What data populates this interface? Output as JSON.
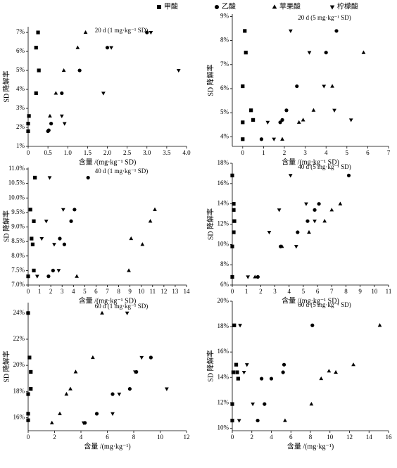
{
  "legend_marker_from": 0,
  "chart_data": [
    {
      "type": "scatter",
      "title": "20 d (1 mg·kg⁻¹ SD)",
      "x_label": "含量 /(mg·kg⁻¹ SD)",
      "y_label": "SD 降解率",
      "xlim": [
        0,
        4
      ],
      "xticks": [
        0,
        0.5,
        {
          "value": 1,
          "label": "1.0"
        },
        1.5,
        {
          "value": 2,
          "label": "2.0"
        },
        2.5,
        {
          "value": 3,
          "label": "3.0"
        },
        3.5,
        {
          "value": 4,
          "label": "4.0"
        }
      ],
      "ylim": [
        1,
        7.3
      ],
      "yticks": [
        {
          "value": 1,
          "label": "1%"
        },
        {
          "value": 2,
          "label": "2%"
        },
        {
          "value": 3,
          "label": "3%"
        },
        {
          "value": 4,
          "label": "4%"
        },
        {
          "value": 5,
          "label": "5%"
        },
        {
          "value": 6,
          "label": "6%"
        },
        {
          "value": 7,
          "label": "7%"
        }
      ],
      "series": [
        {
          "name": "甲酸",
          "marker": "square",
          "color": "#000000",
          "x": [
            0,
            0,
            0.02,
            0.2,
            0.2,
            0.25,
            0.27
          ],
          "values": [
            1.8,
            2.2,
            2.6,
            3.8,
            6.2,
            7.0,
            5.0
          ]
        },
        {
          "name": "乙酸",
          "marker": "circle",
          "color": "#000000",
          "x": [
            0.5,
            0.52,
            0.58,
            0.85,
            1.3,
            2.0,
            3.0
          ],
          "values": [
            1.8,
            1.85,
            2.2,
            3.8,
            5.0,
            6.2,
            7.0
          ]
        },
        {
          "name": "苹果酸",
          "marker": "triangle",
          "color": "#000000",
          "x": [
            0.55,
            0.7,
            0.9,
            1.25,
            1.45
          ],
          "values": [
            2.6,
            3.8,
            5.0,
            6.2,
            7.0
          ]
        },
        {
          "name": "柠檬酸",
          "marker": "triangle-down",
          "color": "#000000",
          "x": [
            0.85,
            0.92,
            1.9,
            2.1,
            3.1,
            3.8
          ],
          "values": [
            2.6,
            2.2,
            3.8,
            6.2,
            7.0,
            5.0
          ]
        }
      ]
    },
    {
      "type": "scatter",
      "title": "20 d (5 mg·kg⁻¹ SD)",
      "x_label": "含量 /(mg·kg⁻¹ SD)",
      "y_label": "SD 降解率",
      "xlim": [
        -0.5,
        7
      ],
      "xticks": [
        0,
        1,
        2,
        3,
        4,
        5,
        6,
        7
      ],
      "ylim": [
        3.6,
        9.1
      ],
      "yticks": [
        {
          "value": 4,
          "label": "4%"
        },
        {
          "value": 5,
          "label": "5%"
        },
        {
          "value": 6,
          "label": "6%"
        },
        {
          "value": 7,
          "label": "7%"
        },
        {
          "value": 8,
          "label": "8%"
        },
        {
          "value": 9,
          "label": "9%"
        }
      ],
      "series": [
        {
          "name": "甲酸",
          "marker": "square",
          "color": "#000000",
          "x": [
            0,
            0,
            0,
            0.1,
            0.15,
            0.4,
            0.5
          ],
          "values": [
            3.9,
            4.6,
            6.1,
            8.4,
            7.5,
            5.1,
            4.7
          ]
        },
        {
          "name": "乙酸",
          "marker": "circle",
          "color": "#000000",
          "x": [
            0.9,
            1.8,
            1.9,
            2.1,
            2.6,
            4.0,
            4.5
          ],
          "values": [
            3.9,
            4.6,
            4.7,
            5.1,
            6.1,
            7.5,
            8.4
          ]
        },
        {
          "name": "苹果酸",
          "marker": "triangle",
          "color": "#000000",
          "x": [
            1.9,
            2.7,
            2.9,
            3.4,
            4.3,
            5.8
          ],
          "values": [
            3.9,
            4.6,
            4.7,
            5.1,
            6.1,
            7.5
          ]
        },
        {
          "name": "柠檬酸",
          "marker": "triangle-down",
          "color": "#000000",
          "x": [
            1.2,
            1.5,
            2.3,
            3.2,
            3.9,
            4.4,
            5.2
          ],
          "values": [
            4.6,
            3.9,
            8.4,
            7.5,
            6.1,
            5.1,
            4.7
          ]
        }
      ]
    },
    {
      "type": "scatter",
      "title": "40 d (1 mg·kg⁻¹ SD)",
      "x_label": "含量 /(mg·kg⁻¹ SD)",
      "y_label": "SD 降解率",
      "xlim": [
        0,
        14
      ],
      "xticks": [
        0,
        1,
        2,
        3,
        4,
        5,
        6,
        7,
        8,
        9,
        10,
        11,
        12,
        13,
        14
      ],
      "ylim": [
        7,
        11.05
      ],
      "yticks": [
        {
          "value": 7,
          "label": "7.0%"
        },
        {
          "value": 7.5,
          "label": "7.5%"
        },
        {
          "value": 8,
          "label": "8.0%"
        },
        {
          "value": 8.5,
          "label": "8.5%"
        },
        {
          "value": 9,
          "label": "9.0%"
        },
        {
          "value": 9.5,
          "label": "9.5%"
        },
        {
          "value": 10,
          "label": "10.0%"
        },
        {
          "value": 10.5,
          "label": "10.5%"
        },
        {
          "value": 11,
          "label": "11.0%"
        }
      ],
      "series": [
        {
          "name": "甲酸",
          "marker": "square",
          "color": "#000000",
          "x": [
            0,
            0.2,
            0.3,
            0.4,
            0.5,
            0.5,
            0.6
          ],
          "values": [
            7.3,
            9.6,
            8.6,
            8.4,
            9.2,
            7.5,
            10.7
          ]
        },
        {
          "name": "乙酸",
          "marker": "circle",
          "color": "#000000",
          "x": [
            1.8,
            2.2,
            2.8,
            3.2,
            3.8,
            4.1,
            5.3
          ],
          "values": [
            7.3,
            7.5,
            8.6,
            8.4,
            9.2,
            9.6,
            10.7
          ]
        },
        {
          "name": "苹果酸",
          "marker": "triangle",
          "color": "#000000",
          "x": [
            4.3,
            8.9,
            9.1,
            10.1,
            10.8,
            11.2
          ],
          "values": [
            7.3,
            7.5,
            8.6,
            8.4,
            9.2,
            9.6
          ]
        },
        {
          "name": "柠檬酸",
          "marker": "triangle-down",
          "color": "#000000",
          "x": [
            0.8,
            1.2,
            1.6,
            1.9,
            2.3,
            2.7,
            3.1
          ],
          "values": [
            7.3,
            8.6,
            9.2,
            10.7,
            8.4,
            7.5,
            9.6
          ]
        }
      ]
    },
    {
      "type": "scatter",
      "title": "40 d (5 mg·kg⁻¹ SD)",
      "x_label": "含量 /(mg·kg⁻¹ SD)",
      "y_label": "SD 降解率",
      "xlim": [
        0,
        11
      ],
      "xticks": [
        0,
        1,
        2,
        3,
        4,
        5,
        6,
        7,
        8,
        9,
        10,
        11
      ],
      "ylim": [
        6,
        18
      ],
      "yticks": [
        {
          "value": 6,
          "label": "6%"
        },
        {
          "value": 8,
          "label": "8%"
        },
        {
          "value": 10,
          "label": "10%"
        },
        {
          "value": 12,
          "label": "12%"
        },
        {
          "value": 14,
          "label": "14%"
        },
        {
          "value": 16,
          "label": "16%"
        },
        {
          "value": 18,
          "label": "18%"
        }
      ],
      "series": [
        {
          "name": "甲酸",
          "marker": "square",
          "color": "#000000",
          "x": [
            0,
            0,
            0.1,
            0.15,
            0.1,
            0.1,
            0
          ],
          "values": [
            6.8,
            9.8,
            11.2,
            12.3,
            13.4,
            14,
            16.8
          ]
        },
        {
          "name": "乙酸",
          "marker": "circle",
          "color": "#000000",
          "x": [
            1.8,
            3.4,
            4.6,
            5.3,
            5.8,
            6.1,
            8.2
          ],
          "values": [
            6.8,
            9.8,
            11.2,
            12.3,
            13.4,
            14,
            16.8
          ]
        },
        {
          "name": "苹果酸",
          "marker": "triangle",
          "color": "#000000",
          "x": [
            1.6,
            3.5,
            5.4,
            6.5,
            7.0,
            7.6
          ],
          "values": [
            6.8,
            9.8,
            11.2,
            12.3,
            13.4,
            14
          ]
        },
        {
          "name": "柠檬酸",
          "marker": "triangle-down",
          "color": "#000000",
          "x": [
            1.1,
            2.6,
            3.3,
            4.5,
            4.1,
            5.2,
            5.8
          ],
          "values": [
            6.8,
            11.2,
            13.4,
            9.8,
            16.8,
            14,
            12.3
          ]
        }
      ]
    },
    {
      "type": "scatter",
      "title": "60 d (1 mg·kg⁻¹ SD)",
      "x_label": "含量 /(mg·kg⁻¹)",
      "y_label": "SD 降解率",
      "xlim": [
        0,
        12
      ],
      "xticks": [
        0,
        2,
        4,
        6,
        8,
        10,
        12
      ],
      "ylim": [
        15,
        24.8
      ],
      "yticks": [
        {
          "value": 16,
          "label": "16%"
        },
        {
          "value": 18,
          "label": "18%"
        },
        {
          "value": 20,
          "label": "20%"
        },
        {
          "value": 22,
          "label": "22%"
        },
        {
          "value": 24,
          "label": "24%"
        }
      ],
      "series": [
        {
          "name": "甲酸",
          "marker": "square",
          "color": "#000000",
          "x": [
            0,
            0,
            0,
            0.2,
            0.2,
            0.1,
            0
          ],
          "values": [
            15.8,
            16.3,
            17.8,
            18.2,
            19.5,
            20.6,
            24
          ]
        },
        {
          "name": "乙酸",
          "marker": "circle",
          "color": "#000000",
          "x": [
            4.3,
            5.2,
            6.4,
            7.7,
            8.2,
            9.3
          ],
          "values": [
            15.6,
            16.3,
            17.8,
            18.2,
            19.5,
            20.6
          ]
        },
        {
          "name": "苹果酸",
          "marker": "triangle",
          "color": "#000000",
          "x": [
            1.8,
            2.4,
            2.9,
            3.2,
            3.6,
            4.9,
            5.6
          ],
          "values": [
            15.6,
            16.3,
            17.8,
            18.2,
            19.5,
            20.6,
            24
          ]
        },
        {
          "name": "柠檬酸",
          "marker": "triangle-down",
          "color": "#000000",
          "x": [
            4.2,
            6.4,
            6.9,
            7.5,
            8.1,
            8.6,
            10.5
          ],
          "values": [
            15.6,
            16.3,
            17.8,
            24,
            19.5,
            20.6,
            18.2
          ]
        }
      ]
    },
    {
      "type": "scatter",
      "title": "60 d (5 mg·kg⁻¹ SD)",
      "x_label": "含量 /(mg·kg⁻¹)",
      "y_label": "SD 降解率",
      "xlim": [
        0,
        16
      ],
      "xticks": [
        0,
        2,
        4,
        6,
        8,
        10,
        12,
        14,
        16
      ],
      "ylim": [
        9.8,
        20
      ],
      "yticks": [
        {
          "value": 10,
          "label": "10%"
        },
        {
          "value": 12,
          "label": "12%"
        },
        {
          "value": 14,
          "label": "14%"
        },
        {
          "value": 16,
          "label": "16%"
        },
        {
          "value": 18,
          "label": "18%"
        },
        {
          "value": 20,
          "label": "20%"
        }
      ],
      "series": [
        {
          "name": "甲酸",
          "marker": "square",
          "color": "#000000",
          "x": [
            0,
            0,
            0.1,
            0.2,
            0.4,
            0.5,
            0.6
          ],
          "values": [
            10.6,
            11.9,
            14.4,
            18.1,
            15.0,
            14.4,
            13.9
          ]
        },
        {
          "name": "乙酸",
          "marker": "circle",
          "color": "#000000",
          "x": [
            2.6,
            3.3,
            3.0,
            4.0,
            5.2,
            5.3,
            8.2
          ],
          "values": [
            10.6,
            11.9,
            13.9,
            13.9,
            14.4,
            15.0,
            18.1
          ]
        },
        {
          "name": "苹果酸",
          "marker": "triangle",
          "color": "#000000",
          "x": [
            5.4,
            8.1,
            9.1,
            9.9,
            10.6,
            12.4,
            15.1
          ],
          "values": [
            10.6,
            11.9,
            13.9,
            14.5,
            14.4,
            15.0,
            18.1
          ]
        },
        {
          "name": "柠檬酸",
          "marker": "triangle-down",
          "color": "#000000",
          "x": [
            0.7,
            0.8,
            1.2,
            1.5,
            2.1
          ],
          "values": [
            10.6,
            18.1,
            14.4,
            15.0,
            11.9
          ]
        }
      ]
    }
  ]
}
